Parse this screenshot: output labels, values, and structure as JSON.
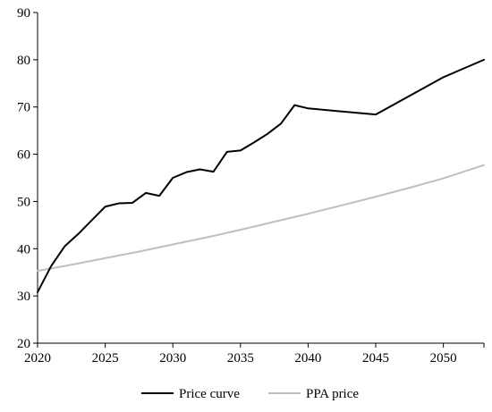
{
  "chart_data": {
    "type": "line",
    "title": "",
    "xlabel": "",
    "ylabel": "",
    "xlim": [
      2020,
      2053
    ],
    "ylim": [
      20,
      90
    ],
    "x_ticks": [
      2020,
      2025,
      2030,
      2035,
      2040,
      2045,
      2050
    ],
    "y_ticks": [
      20,
      30,
      40,
      50,
      60,
      70,
      80,
      90
    ],
    "grid": false,
    "legend_position": "bottom",
    "series": [
      {
        "name": "Price curve",
        "color": "#000000",
        "x": [
          2020,
          2021,
          2022,
          2023,
          2024,
          2025,
          2026,
          2027,
          2028,
          2029,
          2030,
          2031,
          2032,
          2033,
          2034,
          2035,
          2036,
          2037,
          2038,
          2039,
          2040,
          2045,
          2050,
          2053
        ],
        "y": [
          30.8,
          36.3,
          40.5,
          43.1,
          46.0,
          48.9,
          49.6,
          49.7,
          51.8,
          51.2,
          55.0,
          56.2,
          56.8,
          56.3,
          60.5,
          60.8,
          62.5,
          64.3,
          66.5,
          70.4,
          69.7,
          68.4,
          76.3,
          80.0
        ]
      },
      {
        "name": "PPA price",
        "color": "#bfbfbf",
        "x": [
          2020,
          2022.5,
          2025,
          2027.5,
          2030,
          2032.5,
          2035,
          2037.5,
          2040,
          2042.5,
          2045,
          2047.5,
          2050,
          2053
        ],
        "y": [
          35.3,
          36.6,
          38.0,
          39.4,
          40.9,
          42.4,
          44.0,
          45.7,
          47.4,
          49.2,
          51.0,
          52.9,
          54.9,
          57.7
        ]
      }
    ]
  }
}
